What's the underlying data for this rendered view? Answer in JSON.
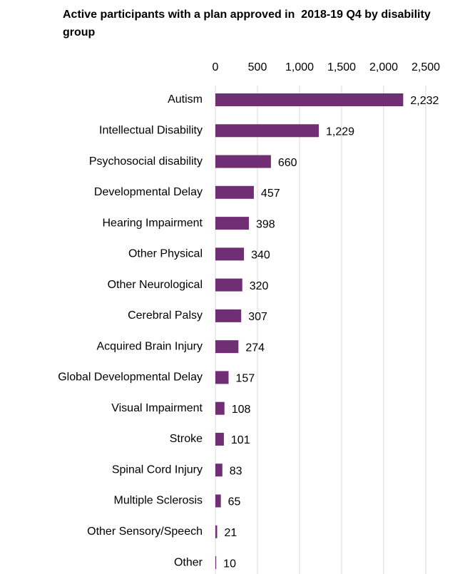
{
  "chart_data": {
    "type": "bar",
    "orientation": "horizontal",
    "title": "Active participants with a plan approved in  2018-19 Q4 by disability group",
    "categories": [
      "Autism",
      "Intellectual Disability",
      "Psychosocial disability",
      "Developmental Delay",
      "Hearing Impairment",
      "Other Physical",
      "Other Neurological",
      "Cerebral Palsy",
      "Acquired Brain Injury",
      "Global Developmental Delay",
      "Visual Impairment",
      "Stroke",
      "Spinal Cord Injury",
      "Multiple Sclerosis",
      "Other Sensory/Speech",
      "Other"
    ],
    "values": [
      2232,
      1229,
      660,
      457,
      398,
      340,
      320,
      307,
      274,
      157,
      108,
      101,
      83,
      65,
      21,
      10
    ],
    "value_labels": [
      "2,232",
      "1,229",
      "660",
      "457",
      "398",
      "340",
      "320",
      "307",
      "274",
      "157",
      "108",
      "101",
      "83",
      "65",
      "21",
      "10"
    ],
    "color": "#702f74",
    "xlim": [
      0,
      2500
    ],
    "xticks": [
      0,
      500,
      {
        "value": 1000,
        "label": "1,000"
      },
      {
        "value": 1500,
        "label": "1,500"
      },
      {
        "value": 2000,
        "label": "2,000"
      },
      {
        "value": 2500,
        "label": "2,500"
      }
    ],
    "grid": true,
    "x_axis_position": "top"
  }
}
